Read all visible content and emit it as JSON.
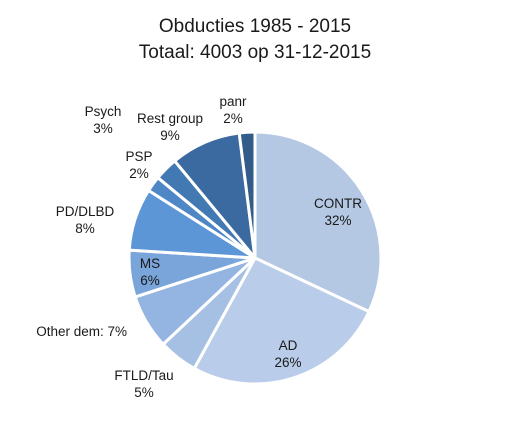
{
  "chart_data": {
    "type": "pie",
    "title": "Obducties 1985 - 2015",
    "subtitle": "Totaal: 4003 op 31-12-2015",
    "slices": [
      {
        "label": "CONTR",
        "percent_text": "32%",
        "value": 32,
        "color": "#b4c8e4"
      },
      {
        "label": "AD",
        "percent_text": "26%",
        "value": 26,
        "color": "#b9cce9"
      },
      {
        "label": "FTLD/Tau",
        "percent_text": "5%",
        "value": 5,
        "color": "#a6c0e4"
      },
      {
        "label": "Other dem: 7%",
        "percent_text": "",
        "value": 7,
        "color": "#94b5e1"
      },
      {
        "label": "MS",
        "percent_text": "6%",
        "value": 6,
        "color": "#7aa5da"
      },
      {
        "label": "PD/DLBD",
        "percent_text": "8%",
        "value": 8,
        "color": "#5d96d6"
      },
      {
        "label": "PSP",
        "percent_text": "2%",
        "value": 2,
        "color": "#4e86c6"
      },
      {
        "label": "Psych",
        "percent_text": "3%",
        "value": 3,
        "color": "#4379b2"
      },
      {
        "label": "Rest group",
        "percent_text": "9%",
        "value": 9,
        "color": "#3a6aa0"
      },
      {
        "label": "panr",
        "percent_text": "2%",
        "value": 2,
        "color": "#335c8a"
      }
    ]
  }
}
